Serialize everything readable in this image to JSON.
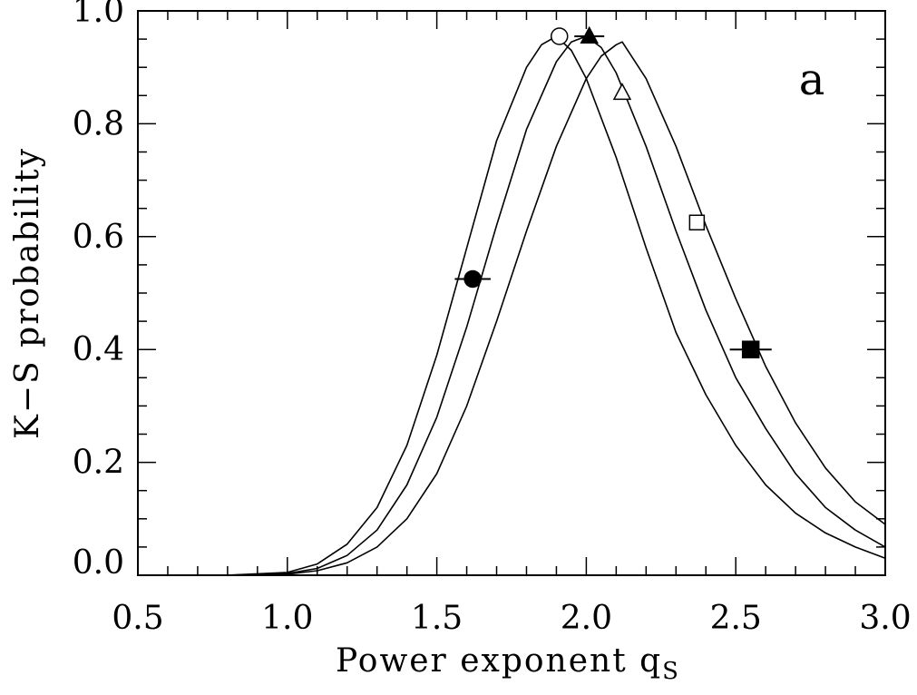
{
  "chart_data": {
    "type": "line",
    "title": "",
    "xlabel": "Power exponent q",
    "xlabel_subscript": "S",
    "ylabel": "K−S probability",
    "panel_label": "a",
    "xlim": [
      0.5,
      3.0
    ],
    "ylim": [
      0.0,
      1.0
    ],
    "xticks": [
      0.5,
      1.0,
      1.5,
      2.0,
      2.5,
      3.0
    ],
    "xtick_labels": [
      "0.5",
      "1.0",
      "1.5",
      "2.0",
      "2.5",
      "3.0"
    ],
    "yticks": [
      0.0,
      0.2,
      0.4,
      0.6,
      0.8,
      1.0
    ],
    "ytick_labels": [
      "0.0",
      "0.2",
      "0.4",
      "0.6",
      "0.8",
      "1.0"
    ],
    "grid": false,
    "legend": "none",
    "series": [
      {
        "x": [
          0.5,
          0.8,
          1.0,
          1.1,
          1.2,
          1.3,
          1.4,
          1.5,
          1.6,
          1.7,
          1.8,
          1.85,
          1.9,
          1.95,
          2.0,
          2.1,
          2.2,
          2.3,
          2.4,
          2.5,
          2.6,
          2.7,
          2.8,
          2.9,
          3.0
        ],
        "y": [
          0.0,
          0.0,
          0.005,
          0.02,
          0.055,
          0.12,
          0.23,
          0.39,
          0.58,
          0.77,
          0.9,
          0.94,
          0.955,
          0.93,
          0.88,
          0.74,
          0.58,
          0.43,
          0.32,
          0.23,
          0.16,
          0.11,
          0.075,
          0.05,
          0.03
        ]
      },
      {
        "x": [
          0.5,
          0.8,
          1.0,
          1.1,
          1.2,
          1.3,
          1.4,
          1.5,
          1.6,
          1.7,
          1.8,
          1.9,
          1.95,
          2.0,
          2.05,
          2.1,
          2.2,
          2.3,
          2.4,
          2.5,
          2.6,
          2.7,
          2.8,
          2.9,
          3.0
        ],
        "y": [
          0.0,
          0.0,
          0.003,
          0.012,
          0.035,
          0.08,
          0.16,
          0.28,
          0.44,
          0.62,
          0.79,
          0.91,
          0.945,
          0.955,
          0.935,
          0.89,
          0.76,
          0.61,
          0.47,
          0.35,
          0.26,
          0.18,
          0.12,
          0.08,
          0.05
        ]
      },
      {
        "x": [
          0.5,
          0.8,
          1.0,
          1.1,
          1.2,
          1.3,
          1.4,
          1.5,
          1.6,
          1.7,
          1.8,
          1.9,
          2.0,
          2.05,
          2.1,
          2.12,
          2.2,
          2.3,
          2.4,
          2.5,
          2.6,
          2.7,
          2.8,
          2.9,
          3.0
        ],
        "y": [
          0.0,
          0.0,
          0.002,
          0.008,
          0.022,
          0.05,
          0.1,
          0.18,
          0.3,
          0.45,
          0.61,
          0.76,
          0.88,
          0.92,
          0.94,
          0.945,
          0.88,
          0.76,
          0.62,
          0.49,
          0.37,
          0.27,
          0.19,
          0.13,
          0.09
        ]
      }
    ],
    "markers": [
      {
        "symbol": "filled-circle",
        "x": 1.62,
        "y": 0.525,
        "xerr": 0.06
      },
      {
        "symbol": "open-circle",
        "x": 1.91,
        "y": 0.955
      },
      {
        "symbol": "filled-triangle",
        "x": 2.01,
        "y": 0.955,
        "xerr": 0.05
      },
      {
        "symbol": "open-triangle",
        "x": 2.12,
        "y": 0.855
      },
      {
        "symbol": "open-square",
        "x": 2.37,
        "y": 0.625
      },
      {
        "symbol": "filled-square",
        "x": 2.55,
        "y": 0.4,
        "xerr": 0.07
      }
    ]
  }
}
